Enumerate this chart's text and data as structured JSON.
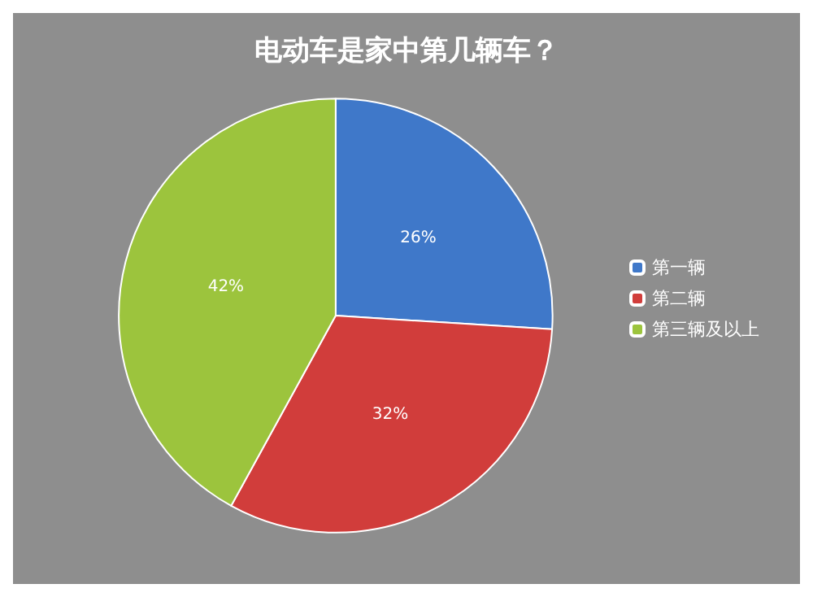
{
  "chart_data": {
    "type": "pie",
    "title": "电动车是家中第几辆车？",
    "categories": [
      "第一辆",
      "第二辆",
      "第三辆及以上"
    ],
    "values": [
      26,
      32,
      42
    ],
    "colors": [
      "#3f78c9",
      "#d13d3b",
      "#9cc43d"
    ],
    "value_labels": [
      "26%",
      "32%",
      "42%"
    ],
    "legend": "right"
  }
}
